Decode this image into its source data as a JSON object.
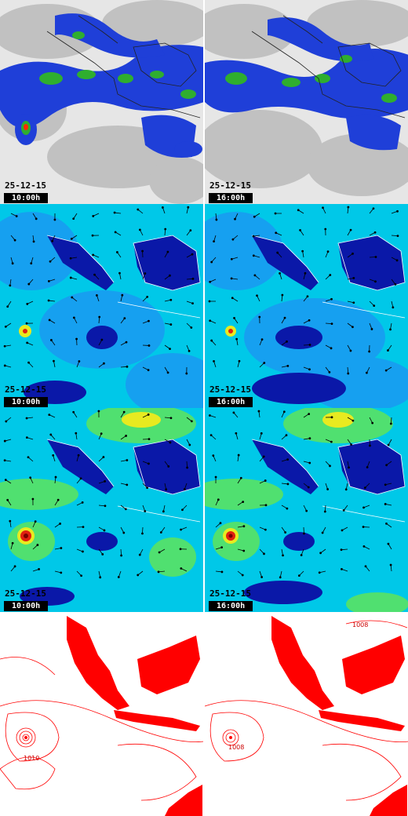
{
  "panels": {
    "row1": {
      "left": {
        "date": "25-12-15",
        "time": "10:00h"
      },
      "right": {
        "date": "25-12-15",
        "time": "16:00h"
      }
    },
    "row2": {
      "left": {
        "date": "25-12-15",
        "time": "10:00h"
      },
      "right": {
        "date": "25-12-15",
        "time": "16:00h"
      }
    },
    "row3": {
      "left": {
        "date": "25-12-15",
        "time": "10:00h"
      },
      "right": {
        "date": "25-12-15",
        "time": "16:00h"
      }
    },
    "row4": {
      "left": {
        "isobar_label": "1010"
      },
      "right": {
        "isobar_label_a": "1008",
        "isobar_label_b": "1008"
      }
    }
  },
  "colors": {
    "cloud_gray": "#bdbdbd",
    "rain_blue": "#1f3fd8",
    "rain_green": "#2fae2f",
    "wind_cyan": "#00c8e8",
    "wind_deep": "#0a18a8",
    "wind_yellow": "#e8ea20",
    "isobar_red": "#ff0000",
    "cyclone_red": "#e02010"
  }
}
